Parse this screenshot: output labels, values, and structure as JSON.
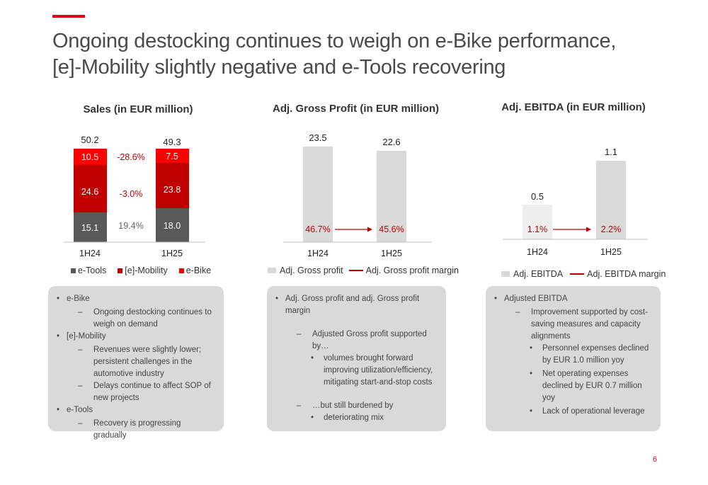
{
  "headline": {
    "line1": "Ongoing destocking continues to weigh on e-Bike performance,",
    "line2": "[e]-Mobility slightly negative and e-Tools recovering"
  },
  "colors": {
    "accent": "#e30613",
    "etools": "#595959",
    "emobility": "#c00000",
    "ebike": "#ff0000",
    "bar_gray": "#d9d9d9",
    "margin_red": "#c00000"
  },
  "sales": {
    "title": "Sales (in EUR million)",
    "legend": [
      "e-Tools",
      "[e]-Mobility",
      "e-Bike"
    ],
    "categories": [
      "1H24",
      "1H25"
    ],
    "totals": [
      "50.2",
      "49.3"
    ],
    "changes": [
      "-28.6%",
      "-3.0%",
      "19.4%"
    ],
    "segment_labels": [
      [
        "15.1",
        "24.6",
        "10.5"
      ],
      [
        "18.0",
        "23.8",
        "7.5"
      ]
    ]
  },
  "gross": {
    "title": "Adj. Gross Profit (in EUR million)",
    "categories": [
      "1H24",
      "1H25"
    ],
    "value_labels": [
      "23.5",
      "22.6"
    ],
    "margin_labels": [
      "46.7%",
      "45.6%"
    ],
    "legend_bar": "Adj. Gross profit",
    "legend_line": "Adj. Gross profit margin"
  },
  "ebitda": {
    "title": "Adj. EBITDA (in EUR million)",
    "categories": [
      "1H24",
      "1H25"
    ],
    "value_labels": [
      "0.5",
      "1.1"
    ],
    "margin_labels": [
      "1.1%",
      "2.2%"
    ],
    "legend_bar": "Adj. EBITDA",
    "legend_line": "Adj. EBITDA margin"
  },
  "chart_data": [
    {
      "type": "bar",
      "stacked": true,
      "title": "Sales (in EUR million)",
      "categories": [
        "1H24",
        "1H25"
      ],
      "series": [
        {
          "name": "e-Tools",
          "values": [
            15.1,
            18.0
          ]
        },
        {
          "name": "[e]-Mobility",
          "values": [
            24.6,
            23.8
          ]
        },
        {
          "name": "e-Bike",
          "values": [
            10.5,
            7.5
          ]
        }
      ],
      "totals": [
        50.2,
        49.3
      ],
      "legend": "bottom"
    },
    {
      "type": "bar",
      "title": "Adj. Gross Profit (in EUR million)",
      "categories": [
        "1H24",
        "1H25"
      ],
      "series": [
        {
          "name": "Adj. Gross profit",
          "values": [
            23.5,
            22.6
          ]
        },
        {
          "name": "Adj. Gross profit margin",
          "values": [
            46.7,
            45.6
          ]
        }
      ],
      "legend": "bottom"
    },
    {
      "type": "bar",
      "title": "Adj. EBITDA (in EUR million)",
      "categories": [
        "1H24",
        "1H25"
      ],
      "series": [
        {
          "name": "Adj. EBITDA",
          "values": [
            0.5,
            1.1
          ]
        },
        {
          "name": "Adj. EBITDA margin",
          "values": [
            1.1,
            2.2
          ]
        }
      ],
      "legend": "bottom"
    }
  ],
  "box1": {
    "b1": "e-Bike",
    "b1_1": "Ongoing destocking continues to weigh on demand",
    "b2": "[e]-Mobility",
    "b2_1": "Revenues were slightly lower; persistent challenges in the automotive industry",
    "b2_2": "Delays continue to affect SOP of new projects",
    "b3": "e-Tools",
    "b3_1": "Recovery is progressing gradually"
  },
  "box2": {
    "b1": "Adj. Gross profit and adj. Gross profit margin",
    "b1_1": "Adjusted Gross profit supported by…",
    "b1_1_1": "volumes brought forward improving utilization/efficiency, mitigating start-and-stop costs",
    "b1_2": "…but still burdened by",
    "b1_2_1": "deteriorating mix"
  },
  "box3": {
    "b1": "Adjusted EBITDA",
    "b1_1": "Improvement supported by cost-saving measures and capacity alignments",
    "b1_1_1": "Personnel expenses declined by EUR 1.0 million yoy",
    "b1_1_2": "Net operating expenses declined by EUR 0.7 million yoy",
    "b1_1_3": "Lack of operational leverage"
  },
  "page_number": "6"
}
